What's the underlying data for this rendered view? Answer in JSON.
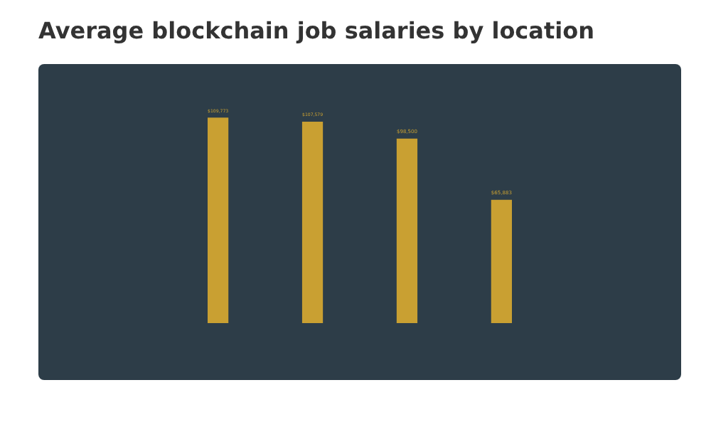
{
  "chart_data": {
    "type": "bar",
    "title": "Average blockchain job salaries by location",
    "categories": [
      null,
      null,
      null,
      null
    ],
    "values": [
      109773,
      107579,
      98500,
      65883
    ],
    "value_labels": [
      "$109,773",
      "$107,579",
      "$98,500",
      "$65,883"
    ],
    "color": "#c9a032"
  }
}
